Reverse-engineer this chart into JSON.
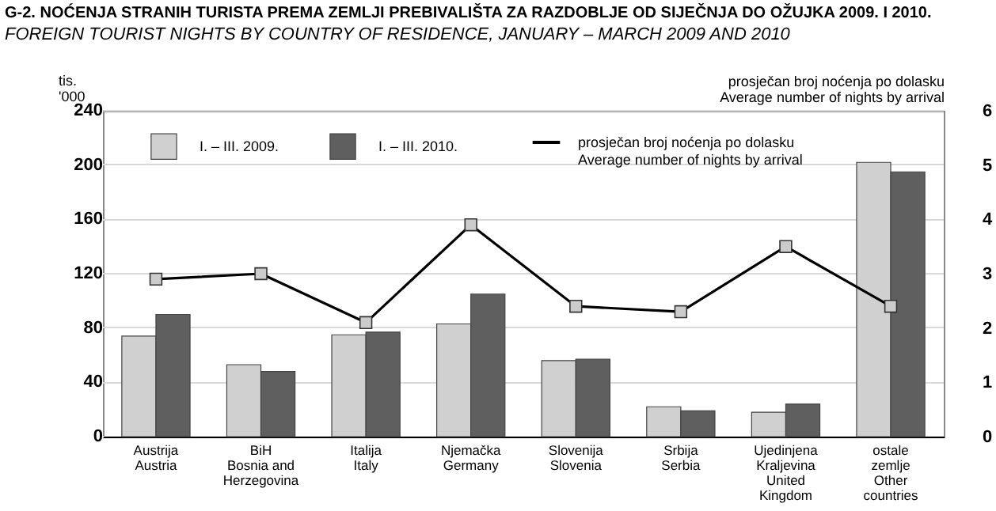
{
  "chart_data": {
    "type": "bar",
    "title": "G-2. NOĆENJA STRANIH TURISTA PREMA ZEMLJI PREBIVALIŠTA ZA RAZDOBLJE OD SIJEČNJA DO OŽUJKA 2009. I 2010.",
    "subtitle": "FOREIGN TOURIST NIGHTS BY COUNTRY OF RESIDENCE, JANUARY – MARCH 2009 AND 2010",
    "ylabel": "tis.\n'000",
    "y2label": "prosječan broj noćenja po dolasku\nAverage number of nights by arrival",
    "categories": [
      "Austrija\nAustria",
      "BiH\nBosnia and\nHerzegovina",
      "Italija\nItaly",
      "Njemačka\nGermany",
      "Slovenija\nSlovenia",
      "Srbija\nSerbia",
      "Ujedinjena\nKraljevina\nUnited\nKingdom",
      "ostale\nzemlje\nOther\ncountries"
    ],
    "series": [
      {
        "name": "I. – III. 2009.",
        "color": "#d0d0d0",
        "values": [
          74,
          53,
          75,
          83,
          56,
          22,
          18,
          202
        ]
      },
      {
        "name": "I. – III. 2010.",
        "color": "#5f5f5f",
        "values": [
          90,
          48,
          77,
          105,
          57,
          19,
          24,
          195
        ]
      },
      {
        "name": "prosječan broj noćenja po dolasku\nAverage number of nights by arrival",
        "type": "line",
        "axis": "y2",
        "color": "#000000",
        "values": [
          2.9,
          3.0,
          2.1,
          3.9,
          2.4,
          2.3,
          3.5,
          2.4
        ]
      }
    ],
    "ylim": [
      0,
      240
    ],
    "yticks": [
      0,
      40,
      80,
      120,
      160,
      200,
      240
    ],
    "y2lim": [
      0,
      6
    ],
    "y2ticks": [
      0,
      1,
      2,
      3,
      4,
      5,
      6
    ],
    "grid": "y",
    "legend": "top",
    "marker": "square",
    "line_style": "solid"
  }
}
